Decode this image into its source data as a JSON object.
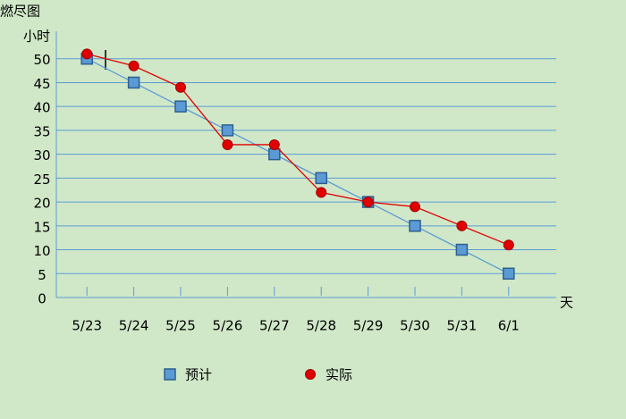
{
  "chart_data": {
    "type": "line",
    "title": "燃尽图",
    "y_label": "小时",
    "x_label": "天",
    "categories": [
      "5/23",
      "5/24",
      "5/25",
      "5/26",
      "5/27",
      "5/28",
      "5/29",
      "5/30",
      "5/31",
      "6/1"
    ],
    "series": [
      {
        "name": "预计",
        "color": "#5b9bd5",
        "marker": "square",
        "values": [
          50,
          45,
          40,
          35,
          30,
          25,
          20,
          15,
          10,
          5
        ]
      },
      {
        "name": "实际",
        "color": "#e00000",
        "marker": "circle",
        "values": [
          51,
          48.5,
          44,
          32,
          32,
          22,
          20,
          19,
          15,
          11
        ]
      }
    ],
    "ylim": [
      0,
      55
    ],
    "yticks": [
      0,
      5,
      10,
      15,
      20,
      25,
      30,
      35,
      40,
      45,
      50
    ],
    "grid": true
  }
}
